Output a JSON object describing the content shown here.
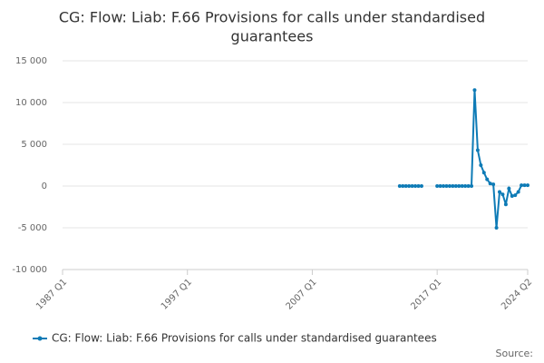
{
  "chart_data": {
    "type": "line",
    "title": [
      "CG: Flow: Liab: F.66 Provisions for calls under standardised",
      "guarantees"
    ],
    "x": [
      "2014 Q1",
      "2014 Q2",
      "2014 Q3",
      "2014 Q4",
      "2015 Q1",
      "2015 Q2",
      "2015 Q3",
      "2015 Q4",
      "2016 Q1",
      "2016 Q2",
      "2016 Q3",
      "2016 Q4",
      "2017 Q1",
      "2017 Q2",
      "2017 Q3",
      "2017 Q4",
      "2018 Q1",
      "2018 Q2",
      "2018 Q3",
      "2018 Q4",
      "2019 Q1",
      "2019 Q2",
      "2019 Q3",
      "2019 Q4",
      "2020 Q1",
      "2020 Q2",
      "2020 Q3",
      "2020 Q4",
      "2021 Q1",
      "2021 Q2",
      "2021 Q3",
      "2021 Q4",
      "2022 Q1",
      "2022 Q2",
      "2022 Q3",
      "2022 Q4",
      "2023 Q1",
      "2023 Q2",
      "2023 Q3",
      "2023 Q4",
      "2024 Q1",
      "2024 Q2"
    ],
    "series": [
      {
        "name": "CG: Flow: Liab: F.66 Provisions for calls under standardised guarantees",
        "color": "#0e7bb6",
        "values": [
          0,
          0,
          0,
          0,
          0,
          0,
          0,
          0,
          null,
          null,
          null,
          null,
          0,
          0,
          0,
          0,
          0,
          0,
          0,
          0,
          0,
          0,
          0,
          0,
          11500,
          4300,
          2500,
          1600,
          800,
          300,
          200,
          -5000,
          -700,
          -1000,
          -2200,
          -300,
          -1200,
          -1100,
          -700,
          100,
          100,
          100
        ]
      }
    ],
    "xlim": [
      "1987 Q1",
      "2024 Q2"
    ],
    "xticks": [
      "1987 Q1",
      "1997 Q1",
      "2007 Q1",
      "2017 Q1",
      "2024 Q2"
    ],
    "ylim": [
      -10000,
      15000
    ],
    "yticks": [
      {
        "value": -10000,
        "label": "-10 000"
      },
      {
        "value": -5000,
        "label": "-5 000"
      },
      0,
      {
        "value": 5000,
        "label": "5 000"
      },
      {
        "value": 10000,
        "label": "10 000"
      },
      {
        "value": 15000,
        "label": "15 000"
      }
    ],
    "grid": true,
    "legend": "bottom",
    "source": "Source:"
  }
}
